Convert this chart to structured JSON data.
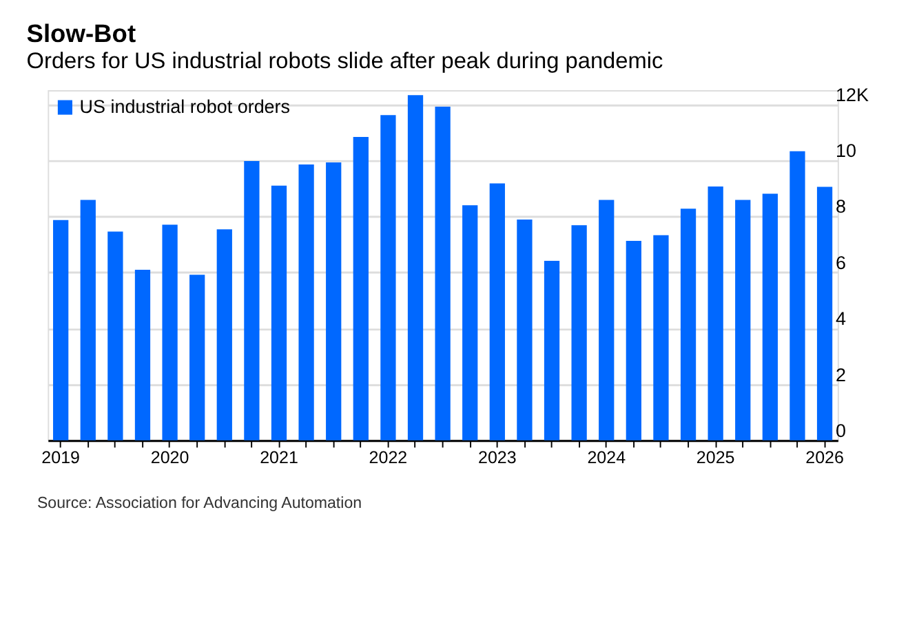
{
  "chart_data": {
    "type": "bar",
    "title": "Slow-Bot",
    "subtitle": "Orders for US industrial robots slide after peak during pandemic",
    "annotations": [
      "Source: Association for Advancing Automation"
    ],
    "categories": [
      "2019",
      null,
      null,
      null,
      "2020",
      null,
      null,
      null,
      "2021",
      null,
      null,
      null,
      "2022",
      null,
      null,
      null,
      "2023",
      null,
      null,
      null,
      "2024",
      null,
      null,
      null,
      "2025",
      null,
      null,
      null,
      "2026"
    ],
    "series": [
      {
        "name": "US industrial robot orders",
        "color": "#0068ff",
        "values": [
          7.86,
          8.58,
          7.45,
          6.09,
          7.7,
          5.91,
          7.53,
          9.97,
          9.09,
          9.85,
          9.92,
          10.83,
          11.61,
          12.32,
          11.91,
          8.39,
          9.17,
          7.88,
          6.41,
          7.68,
          8.58,
          7.12,
          7.32,
          8.27,
          9.06,
          8.58,
          8.8,
          10.32,
          9.05
        ]
      }
    ],
    "ylim": [
      0,
      12.5
    ],
    "yticks": [
      0,
      2,
      4,
      6,
      8,
      10,
      {
        "value": 12,
        "label": "12K"
      }
    ],
    "grid": "y",
    "legend": "top left"
  }
}
